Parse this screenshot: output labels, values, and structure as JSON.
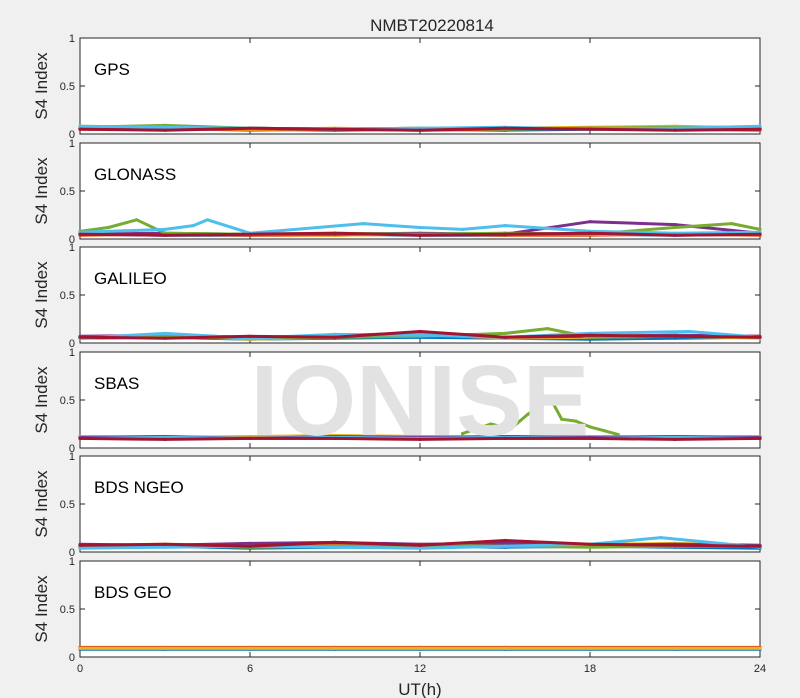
{
  "chart_data": {
    "type": "scatter",
    "title": "NMBT20220814",
    "xlabel": "UT(h)",
    "ylabel": "S4 Index",
    "xlim": [
      0,
      24
    ],
    "ylim": [
      0,
      1
    ],
    "xticks": [
      "0",
      "6",
      "12",
      "18",
      "24"
    ],
    "yticks": [
      "0",
      "0.5",
      "1"
    ],
    "watermark": "IONISE",
    "series_colors": [
      "#0072bd",
      "#d95319",
      "#edb120",
      "#7e2f8e",
      "#77ac30",
      "#4dbeee",
      "#a2142f"
    ],
    "panels": [
      {
        "label": "GPS",
        "series": [
          {
            "x": [
              0,
              3,
              6,
              9,
              12,
              15,
              18,
              21,
              24
            ],
            "y": [
              0.06,
              0.05,
              0.05,
              0.04,
              0.05,
              0.04,
              0.05,
              0.06,
              0.05
            ]
          },
          {
            "x": [
              0,
              3,
              6,
              9,
              12,
              15,
              18,
              21,
              24
            ],
            "y": [
              0.05,
              0.06,
              0.04,
              0.05,
              0.04,
              0.05,
              0.06,
              0.05,
              0.04
            ]
          },
          {
            "x": [
              0,
              3,
              6,
              9,
              12,
              15,
              18,
              21,
              24
            ],
            "y": [
              0.08,
              0.07,
              0.05,
              0.06,
              0.05,
              0.06,
              0.07,
              0.08,
              0.06
            ]
          },
          {
            "x": [
              0,
              3,
              6,
              9,
              12,
              15,
              18,
              21,
              24
            ],
            "y": [
              0.06,
              0.05,
              0.06,
              0.05,
              0.06,
              0.05,
              0.06,
              0.05,
              0.06
            ]
          },
          {
            "x": [
              0,
              3,
              6,
              9,
              12,
              15,
              18,
              21,
              24
            ],
            "y": [
              0.07,
              0.09,
              0.06,
              0.05,
              0.06,
              0.05,
              0.06,
              0.07,
              0.07
            ]
          },
          {
            "x": [
              0,
              3,
              6,
              9,
              12,
              15,
              18,
              21,
              24
            ],
            "y": [
              0.08,
              0.07,
              0.06,
              0.05,
              0.06,
              0.07,
              0.05,
              0.06,
              0.08
            ]
          },
          {
            "x": [
              0,
              3,
              6,
              9,
              12,
              15,
              18,
              21,
              24
            ],
            "y": [
              0.05,
              0.04,
              0.06,
              0.05,
              0.04,
              0.06,
              0.05,
              0.04,
              0.05
            ]
          }
        ]
      },
      {
        "label": "GLONASS",
        "series": [
          {
            "x": [
              0,
              3,
              6,
              9,
              12,
              15,
              18,
              21,
              24
            ],
            "y": [
              0.05,
              0.04,
              0.04,
              0.05,
              0.04,
              0.04,
              0.05,
              0.04,
              0.05
            ]
          },
          {
            "x": [
              0,
              3,
              6,
              9,
              12,
              15,
              18,
              21,
              24
            ],
            "y": [
              0.04,
              0.05,
              0.04,
              0.04,
              0.05,
              0.04,
              0.04,
              0.05,
              0.04
            ]
          },
          {
            "x": [
              0,
              3,
              6,
              9,
              12,
              15,
              18,
              21,
              24
            ],
            "y": [
              0.06,
              0.05,
              0.05,
              0.04,
              0.05,
              0.06,
              0.05,
              0.05,
              0.06
            ]
          },
          {
            "x": [
              0,
              3,
              6,
              9,
              12,
              15,
              18,
              21,
              24
            ],
            "y": [
              0.05,
              0.06,
              0.05,
              0.05,
              0.06,
              0.05,
              0.18,
              0.15,
              0.06
            ]
          },
          {
            "x": [
              0,
              1,
              2,
              3,
              6,
              9,
              12,
              15,
              18,
              21,
              23,
              24
            ],
            "y": [
              0.08,
              0.12,
              0.2,
              0.06,
              0.05,
              0.06,
              0.05,
              0.06,
              0.05,
              0.12,
              0.16,
              0.1
            ]
          },
          {
            "x": [
              0,
              3,
              4,
              4.5,
              6,
              10,
              12,
              13.5,
              15,
              18,
              21,
              24
            ],
            "y": [
              0.07,
              0.1,
              0.14,
              0.2,
              0.06,
              0.16,
              0.12,
              0.1,
              0.14,
              0.08,
              0.06,
              0.07
            ]
          },
          {
            "x": [
              0,
              3,
              6,
              9,
              12,
              15,
              18,
              21,
              24
            ],
            "y": [
              0.05,
              0.04,
              0.05,
              0.06,
              0.04,
              0.05,
              0.06,
              0.04,
              0.05
            ]
          }
        ]
      },
      {
        "label": "GALILEO",
        "series": [
          {
            "x": [
              0,
              3,
              6,
              9,
              12,
              15,
              18,
              21,
              24
            ],
            "y": [
              0.05,
              0.06,
              0.04,
              0.05,
              0.06,
              0.05,
              0.04,
              0.05,
              0.06
            ]
          },
          {
            "x": [
              0,
              3,
              6,
              9,
              12,
              15,
              18,
              21,
              24
            ],
            "y": [
              0.06,
              0.07,
              0.05,
              0.08,
              0.1,
              0.06,
              0.07,
              0.08,
              0.07
            ]
          },
          {
            "x": [
              0,
              3,
              6,
              9,
              12,
              15,
              18,
              21,
              24
            ],
            "y": [
              0.05,
              0.08,
              0.04,
              0.06,
              0.09,
              0.05,
              0.06,
              0.07,
              0.05
            ]
          },
          {
            "x": [
              0,
              3,
              6,
              9,
              12,
              15,
              18,
              21,
              24
            ],
            "y": [
              0.07,
              0.08,
              0.06,
              0.07,
              0.08,
              0.06,
              0.07,
              0.08,
              0.07
            ]
          },
          {
            "x": [
              0,
              3,
              6,
              9,
              12,
              15,
              16.5,
              18,
              21,
              24
            ],
            "y": [
              0.06,
              0.07,
              0.05,
              0.06,
              0.07,
              0.1,
              0.15,
              0.06,
              0.07,
              0.06
            ]
          },
          {
            "x": [
              0,
              3,
              6,
              9,
              12,
              15,
              18,
              21.5,
              24
            ],
            "y": [
              0.05,
              0.1,
              0.05,
              0.09,
              0.08,
              0.06,
              0.1,
              0.12,
              0.06
            ]
          },
          {
            "x": [
              0,
              3,
              6,
              9,
              12,
              15,
              18,
              21,
              24
            ],
            "y": [
              0.06,
              0.05,
              0.07,
              0.06,
              0.12,
              0.06,
              0.08,
              0.07,
              0.06
            ]
          }
        ]
      },
      {
        "label": "SBAS",
        "series": [
          {
            "x": [
              0,
              3,
              6,
              9,
              12,
              15,
              18,
              21,
              24
            ],
            "y": [
              0.1,
              0.1,
              0.1,
              0.1,
              0.1,
              0.1,
              0.1,
              0.1,
              0.1
            ]
          },
          {
            "x": [
              0,
              3,
              6,
              9,
              12,
              15,
              18,
              21,
              24
            ],
            "y": [
              0.11,
              0.1,
              0.11,
              0.1,
              0.11,
              0.1,
              0.11,
              0.1,
              0.11
            ]
          },
          {
            "x": [
              0,
              3,
              6,
              9,
              12,
              15,
              18,
              21,
              24
            ],
            "y": [
              0.12,
              0.11,
              0.12,
              0.13,
              0.12,
              0.11,
              0.12,
              0.11,
              0.12
            ]
          },
          {
            "x": [
              0,
              3,
              6,
              9,
              12,
              15,
              18,
              21,
              24
            ],
            "y": [
              0.11,
              0.12,
              0.1,
              0.12,
              0.11,
              0.12,
              0.11,
              0.12,
              0.11
            ]
          },
          {
            "x": [
              13.5,
              14.5,
              15.2,
              15.8,
              16.3,
              16.6,
              17,
              17.5,
              18,
              18.5,
              19
            ],
            "y": [
              0.15,
              0.25,
              0.2,
              0.35,
              0.45,
              0.52,
              0.3,
              0.28,
              0.22,
              0.18,
              0.14
            ]
          },
          {
            "x": [
              0,
              3,
              6,
              9,
              12,
              15,
              18,
              21,
              24
            ],
            "y": [
              0.1,
              0.11,
              0.1,
              0.11,
              0.1,
              0.11,
              0.1,
              0.11,
              0.1
            ]
          },
          {
            "x": [
              0,
              3,
              6,
              9,
              12,
              15,
              18,
              21,
              24
            ],
            "y": [
              0.1,
              0.09,
              0.1,
              0.1,
              0.09,
              0.1,
              0.1,
              0.09,
              0.1
            ]
          }
        ]
      },
      {
        "label": "BDS NGEO",
        "series": [
          {
            "x": [
              0,
              3,
              6,
              9,
              12,
              15,
              18,
              21,
              24
            ],
            "y": [
              0.05,
              0.06,
              0.04,
              0.05,
              0.06,
              0.05,
              0.06,
              0.05,
              0.04
            ]
          },
          {
            "x": [
              0,
              3,
              6,
              9,
              12,
              15,
              18,
              21,
              24
            ],
            "y": [
              0.06,
              0.07,
              0.06,
              0.07,
              0.06,
              0.07,
              0.06,
              0.07,
              0.06
            ]
          },
          {
            "x": [
              0,
              3,
              6,
              9,
              12,
              15,
              18,
              21,
              24
            ],
            "y": [
              0.07,
              0.08,
              0.07,
              0.06,
              0.08,
              0.07,
              0.08,
              0.09,
              0.07
            ]
          },
          {
            "x": [
              0,
              3,
              6,
              9,
              12,
              15,
              18,
              21,
              24
            ],
            "y": [
              0.08,
              0.07,
              0.09,
              0.1,
              0.08,
              0.09,
              0.07,
              0.08,
              0.07
            ]
          },
          {
            "x": [
              0,
              3,
              6,
              9,
              12,
              15,
              18,
              21,
              24
            ],
            "y": [
              0.06,
              0.07,
              0.05,
              0.06,
              0.07,
              0.06,
              0.05,
              0.06,
              0.06
            ]
          },
          {
            "x": [
              0,
              3,
              6,
              9,
              12,
              15,
              18,
              20.5,
              24
            ],
            "y": [
              0.04,
              0.05,
              0.06,
              0.05,
              0.04,
              0.06,
              0.08,
              0.15,
              0.05
            ]
          },
          {
            "x": [
              0,
              3,
              6,
              9,
              12,
              15,
              18,
              21,
              24
            ],
            "y": [
              0.07,
              0.08,
              0.06,
              0.1,
              0.07,
              0.12,
              0.08,
              0.07,
              0.06
            ]
          }
        ]
      },
      {
        "label": "BDS GEO",
        "series": [
          {
            "x": [
              0,
              3,
              6,
              9,
              12,
              15,
              18,
              21,
              24
            ],
            "y": [
              0.08,
              0.08,
              0.08,
              0.08,
              0.08,
              0.08,
              0.08,
              0.08,
              0.08
            ]
          },
          {
            "x": [
              0,
              3,
              6,
              9,
              12,
              15,
              18,
              21,
              24
            ],
            "y": [
              0.1,
              0.1,
              0.1,
              0.1,
              0.1,
              0.1,
              0.1,
              0.1,
              0.1
            ]
          },
          {
            "x": [
              0,
              3,
              6,
              9,
              12,
              15,
              18,
              21,
              24
            ],
            "y": [
              0.09,
              0.09,
              0.09,
              0.09,
              0.09,
              0.09,
              0.09,
              0.09,
              0.09
            ]
          }
        ]
      }
    ]
  }
}
